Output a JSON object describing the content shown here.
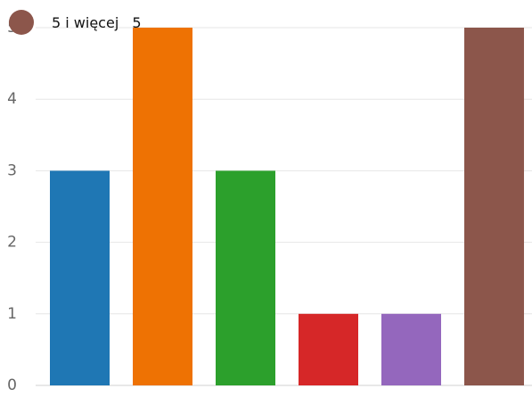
{
  "chart_data": {
    "type": "bar",
    "categories": [
      "",
      "",
      "",
      "",
      "",
      ""
    ],
    "values": [
      3,
      5,
      3,
      1,
      1,
      5
    ],
    "colors": [
      "#1f77b4",
      "#ee7203",
      "#2ca02c",
      "#d62728",
      "#9467bd",
      "#8c564b"
    ],
    "yticks": [
      "0",
      "1",
      "2",
      "3",
      "4",
      "5"
    ],
    "ylim": [
      0,
      5
    ],
    "grid": true,
    "title": "",
    "xlabel": "",
    "ylabel": ""
  },
  "tooltip": {
    "label": "5 i więcej",
    "value": "5",
    "swatch_color": "#8c564b"
  }
}
